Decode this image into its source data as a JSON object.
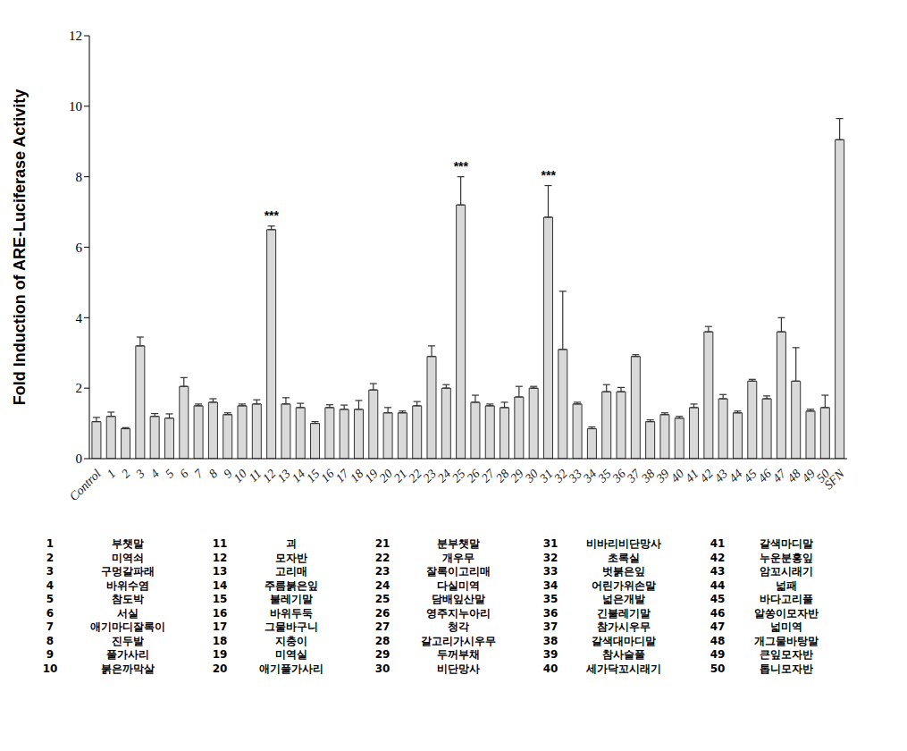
{
  "chart_data": {
    "type": "bar",
    "y_label": "Fold Induction of ARE-Luciferase Activity",
    "categories": [
      "Control",
      "1",
      "2",
      "3",
      "4",
      "5",
      "6",
      "7",
      "8",
      "9",
      "10",
      "11",
      "12",
      "13",
      "14",
      "15",
      "16",
      "17",
      "18",
      "19",
      "20",
      "21",
      "22",
      "23",
      "24",
      "25",
      "26",
      "27",
      "28",
      "29",
      "30",
      "31",
      "32",
      "33",
      "34",
      "35",
      "36",
      "37",
      "38",
      "39",
      "40",
      "41",
      "42",
      "43",
      "44",
      "45",
      "46",
      "47",
      "48",
      "49",
      "50",
      "SFN"
    ],
    "values": [
      1.05,
      1.2,
      0.85,
      3.2,
      1.2,
      1.15,
      2.05,
      1.5,
      1.6,
      1.25,
      1.5,
      1.55,
      6.5,
      1.55,
      1.45,
      1.0,
      1.45,
      1.4,
      1.4,
      1.95,
      1.3,
      1.3,
      1.5,
      2.9,
      2.0,
      7.2,
      1.6,
      1.5,
      1.45,
      1.75,
      2.0,
      6.85,
      3.1,
      1.55,
      0.85,
      1.9,
      1.9,
      2.9,
      1.05,
      1.25,
      1.15,
      1.45,
      3.6,
      1.7,
      1.3,
      2.2,
      1.7,
      3.6,
      2.2,
      1.35,
      1.45,
      9.05
    ],
    "errors": [
      0.12,
      0.12,
      0.03,
      0.25,
      0.08,
      0.12,
      0.25,
      0.05,
      0.1,
      0.05,
      0.05,
      0.12,
      0.1,
      0.18,
      0.12,
      0.05,
      0.08,
      0.12,
      0.25,
      0.18,
      0.15,
      0.05,
      0.12,
      0.3,
      0.1,
      0.8,
      0.2,
      0.05,
      0.15,
      0.3,
      0.05,
      0.9,
      1.65,
      0.05,
      0.05,
      0.2,
      0.12,
      0.05,
      0.05,
      0.05,
      0.05,
      0.1,
      0.15,
      0.12,
      0.05,
      0.05,
      0.08,
      0.4,
      0.95,
      0.05,
      0.35,
      0.6
    ],
    "color": "#d9d9d9",
    "ylim": [
      0,
      12
    ],
    "yticks": [
      0,
      2,
      4,
      6,
      8,
      10,
      12
    ],
    "grid": false,
    "annotations": [
      {
        "category": "12",
        "text": "***"
      },
      {
        "category": "25",
        "text": "***"
      },
      {
        "category": "31",
        "text": "***"
      }
    ],
    "legend_table": [
      {
        "number": 1,
        "name": "부챗말"
      },
      {
        "number": 2,
        "name": "미역쇠"
      },
      {
        "number": 3,
        "name": "구멍갈파래"
      },
      {
        "number": 4,
        "name": "바위수염"
      },
      {
        "number": 5,
        "name": "참도박"
      },
      {
        "number": 6,
        "name": "서실"
      },
      {
        "number": 7,
        "name": "애기마디잘록이"
      },
      {
        "number": 8,
        "name": "진두발"
      },
      {
        "number": 9,
        "name": "풀가사리"
      },
      {
        "number": 10,
        "name": "붉은까막살"
      },
      {
        "number": 11,
        "name": "괴"
      },
      {
        "number": 12,
        "name": "모자반"
      },
      {
        "number": 13,
        "name": "고리매"
      },
      {
        "number": 14,
        "name": "주름붉은잎"
      },
      {
        "number": 15,
        "name": "불레기말"
      },
      {
        "number": 16,
        "name": "바위두둑"
      },
      {
        "number": 17,
        "name": "그물바구니"
      },
      {
        "number": 18,
        "name": "지충이"
      },
      {
        "number": 19,
        "name": "미역실"
      },
      {
        "number": 20,
        "name": "애기풀가사리"
      },
      {
        "number": 21,
        "name": "분부챗말"
      },
      {
        "number": 22,
        "name": "개우무"
      },
      {
        "number": 23,
        "name": "잘록이고리매"
      },
      {
        "number": 24,
        "name": "다실미역"
      },
      {
        "number": 25,
        "name": "담배잎산말"
      },
      {
        "number": 26,
        "name": "영주지누아리"
      },
      {
        "number": 27,
        "name": "청각"
      },
      {
        "number": 28,
        "name": "갈고리가시우무"
      },
      {
        "number": 29,
        "name": "두꺼부채"
      },
      {
        "number": 30,
        "name": "비단망사"
      },
      {
        "number": 31,
        "name": "비바리비단망사"
      },
      {
        "number": 32,
        "name": "초록실"
      },
      {
        "number": 33,
        "name": "벗붉은잎"
      },
      {
        "number": 34,
        "name": "어린가위손말"
      },
      {
        "number": 35,
        "name": "넓은개발"
      },
      {
        "number": 36,
        "name": "긴불레기말"
      },
      {
        "number": 37,
        "name": "참가시우무"
      },
      {
        "number": 38,
        "name": "갈색대마디말"
      },
      {
        "number": 39,
        "name": "참사슬풀"
      },
      {
        "number": 40,
        "name": "세가닥꼬시래기"
      },
      {
        "number": 41,
        "name": "갈색마디말"
      },
      {
        "number": 42,
        "name": "누운분홍잎"
      },
      {
        "number": 43,
        "name": "암꼬시래기"
      },
      {
        "number": 44,
        "name": "넓패"
      },
      {
        "number": 45,
        "name": "바다고리풀"
      },
      {
        "number": 46,
        "name": "알쏭이모자반"
      },
      {
        "number": 47,
        "name": "넓미역"
      },
      {
        "number": 48,
        "name": "개그물바탕말"
      },
      {
        "number": 49,
        "name": "큰잎모자반"
      },
      {
        "number": 50,
        "name": "톱니모자반"
      }
    ]
  }
}
